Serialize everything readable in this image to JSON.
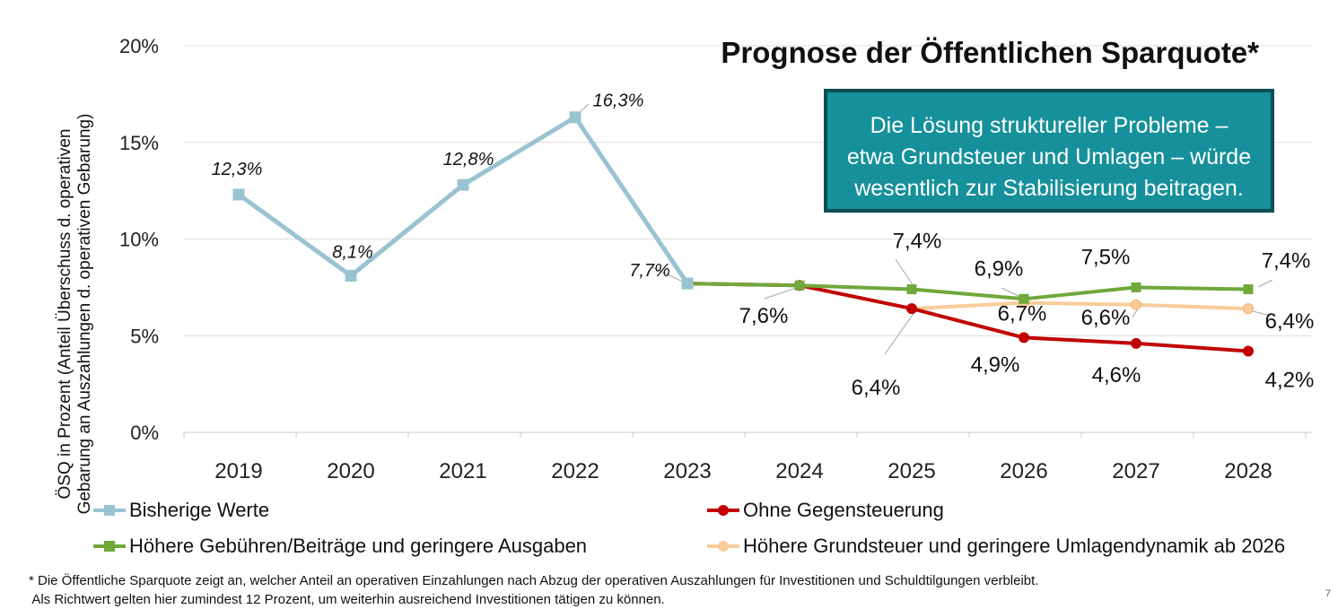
{
  "title": "Prognose der Öffentlichen Sparquote*",
  "callout_lines": [
    "Die Lösung struktureller Probleme –",
    "etwa Grundsteuer und Umlagen – würde",
    "wesentlich zur Stabilisierung beitragen."
  ],
  "ylabel_lines": [
    "ÖSQ in Prozent (Anteil Überschuss d. operativen",
    "Gebarung an Auszahlungen d. operativen Gebarung)"
  ],
  "footnote_lines": [
    "* Die Öffentliche Sparquote zeigt an, welcher Anteil an operativen Einzahlungen nach Abzug der operativen Auszahlungen für Investitionen und Schuldtilgungen verbleibt.",
    " Als Richtwert gelten hier zumindest 12 Prozent, um weiterhin ausreichend Investitionen tätigen zu können."
  ],
  "page_number": "7",
  "chart_data": {
    "type": "line",
    "title": "Prognose der Öffentlichen Sparquote*",
    "ylabel": "ÖSQ in Prozent (Anteil Überschuss d. operativen Gebarung an Auszahlungen d. operativen Gebarung)",
    "categories": [
      "2019",
      "2020",
      "2021",
      "2022",
      "2023",
      "2024",
      "2025",
      "2026",
      "2027",
      "2028"
    ],
    "yticks": [
      0,
      5,
      10,
      15,
      20
    ],
    "ytick_labels": [
      "0%",
      "5%",
      "10%",
      "15%",
      "20%"
    ],
    "ylim": [
      0,
      20
    ],
    "grid": true,
    "legend_position": "bottom",
    "series": [
      {
        "name": "Bisherige Werte",
        "color": "#9ac3d1",
        "marker": "square",
        "values": [
          12.3,
          8.1,
          12.8,
          16.3,
          7.7,
          null,
          null,
          null,
          null,
          null
        ],
        "labels": [
          "12,3%",
          "8,1%",
          "12,8%",
          "16,3%",
          "7,7%",
          "",
          "",
          "",
          "",
          ""
        ]
      },
      {
        "name": "Ohne Gegensteuerung",
        "color": "#c00000",
        "marker": "circle",
        "values": [
          null,
          null,
          null,
          null,
          7.7,
          7.6,
          6.4,
          4.9,
          4.6,
          4.2
        ],
        "labels": [
          "",
          "",
          "",
          "",
          "",
          "7,6%",
          "6,4%",
          "4,9%",
          "4,6%",
          "4,2%"
        ]
      },
      {
        "name": "Höhere Gebühren/Beiträge und geringere Ausgaben",
        "color": "#70a83b",
        "marker": "square",
        "values": [
          null,
          null,
          null,
          null,
          7.7,
          7.6,
          7.4,
          6.9,
          7.5,
          7.4
        ],
        "labels": [
          "",
          "",
          "",
          "",
          "",
          "",
          "7,4%",
          "6,9%",
          "7,5%",
          "7,4%"
        ]
      },
      {
        "name": "Höhere Grundsteuer und geringere Umlagendynamik ab 2026",
        "color": "#f9cc9a",
        "marker": "circle",
        "values": [
          null,
          null,
          null,
          null,
          7.7,
          7.6,
          6.4,
          6.7,
          6.6,
          6.4
        ],
        "labels": [
          "",
          "",
          "",
          "",
          "",
          "",
          "",
          "6,7%",
          "6,6%",
          "6,4%"
        ]
      }
    ]
  }
}
